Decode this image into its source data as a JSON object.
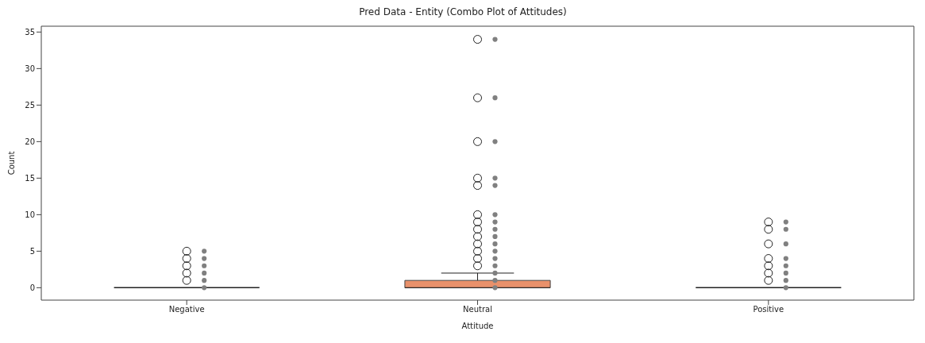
{
  "chart_data": {
    "type": "box",
    "title": "Pred Data - Entity (Combo Plot of Attitudes)",
    "xlabel": "Attitude",
    "ylabel": "Count",
    "categories": [
      "Negative",
      "Neutral",
      "Positive"
    ],
    "ylim": [
      -1.7,
      35.8
    ],
    "yticks": [
      0,
      5,
      10,
      15,
      20,
      25,
      30,
      35
    ],
    "series": [
      {
        "type": "box",
        "colors": [
          "#222222",
          "#e9916b",
          "#222222"
        ],
        "boxes": [
          {
            "low": 0,
            "q1": 0,
            "median": 0,
            "q3": 0,
            "high": 0,
            "outliers": [
              1,
              2,
              3,
              4,
              5
            ]
          },
          {
            "low": 0,
            "q1": 0,
            "median": 0,
            "q3": 1,
            "high": 2,
            "outliers": [
              3,
              4,
              5,
              6,
              7,
              8,
              9,
              10,
              14,
              15,
              20,
              26,
              34
            ]
          },
          {
            "low": 0,
            "q1": 0,
            "median": 0,
            "q3": 0,
            "high": 0,
            "outliers": [
              1,
              2,
              3,
              4,
              6,
              8,
              9
            ]
          }
        ]
      },
      {
        "type": "scatter",
        "color": "#808080",
        "marker": "circle",
        "x": [
          "Negative",
          "Negative",
          "Negative",
          "Negative",
          "Negative",
          "Negative",
          "Neutral",
          "Neutral",
          "Neutral",
          "Neutral",
          "Neutral",
          "Neutral",
          "Neutral",
          "Neutral",
          "Neutral",
          "Neutral",
          "Neutral",
          "Neutral",
          "Neutral",
          "Neutral",
          "Neutral",
          "Neutral",
          "Positive",
          "Positive",
          "Positive",
          "Positive",
          "Positive",
          "Positive",
          "Positive",
          "Positive"
        ],
        "values": [
          0,
          1,
          2,
          3,
          4,
          5,
          0,
          1,
          2,
          3,
          4,
          5,
          6,
          7,
          8,
          9,
          10,
          14,
          15,
          20,
          26,
          34,
          0,
          1,
          2,
          3,
          4,
          6,
          8,
          9
        ]
      }
    ]
  }
}
